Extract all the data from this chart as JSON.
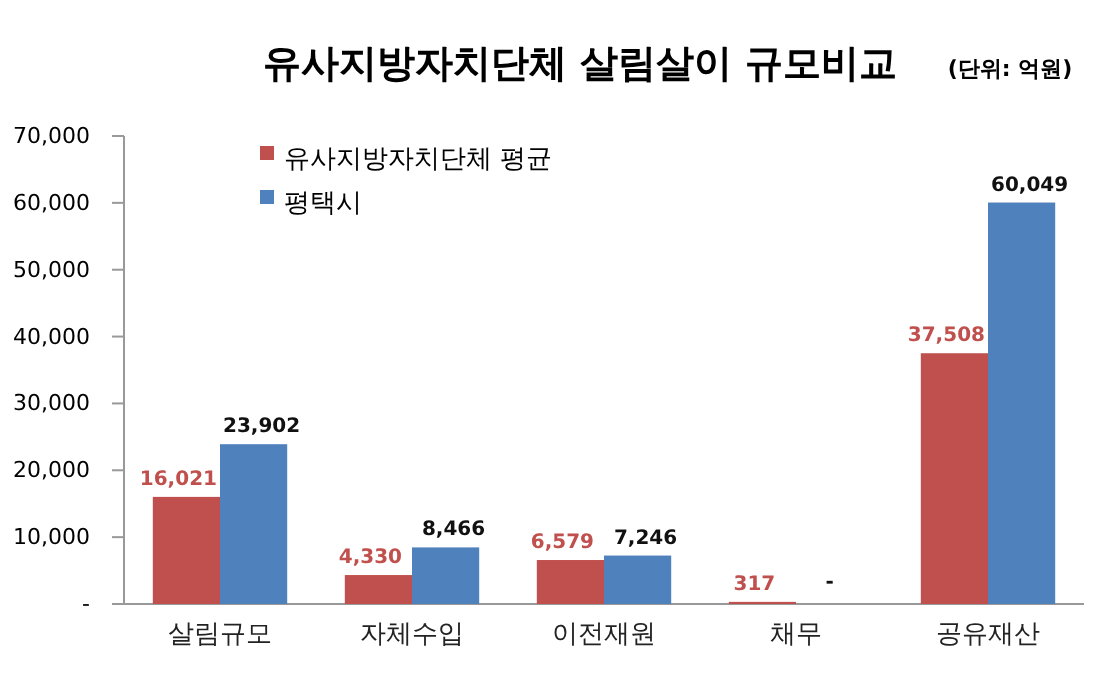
{
  "chart_data": {
    "type": "bar",
    "title": "유사지방자치단체 살림살이 규모비교",
    "subtitle": "(단위: 억원)",
    "categories": [
      "살림규모",
      "자체수입",
      "이전재원",
      "채무",
      "공유재산"
    ],
    "series": [
      {
        "name": "유사지방자치단체 평균",
        "color": "#c0504d",
        "values": [
          16021,
          4330,
          6579,
          317,
          37508
        ],
        "value_labels": [
          "16,021",
          "4,330",
          "6,579",
          "317",
          "37,508"
        ]
      },
      {
        "name": "평택시",
        "color": "#4f81bd",
        "values": [
          23902,
          8466,
          7246,
          null,
          60049
        ],
        "value_labels": [
          "23,902",
          "8,466",
          "7,246",
          null,
          "60,049"
        ]
      }
    ],
    "annotations": [
      {
        "text": "-",
        "x": "채무",
        "y": 0
      }
    ],
    "ylim": [
      0,
      70000
    ],
    "yticks": [
      {
        "value": 0,
        "label": "-"
      },
      {
        "value": 10000,
        "label": "10,000"
      },
      {
        "value": 20000,
        "label": "20,000"
      },
      {
        "value": 30000,
        "label": "30,000"
      },
      {
        "value": 40000,
        "label": "40,000"
      },
      {
        "value": 50000,
        "label": "50,000"
      },
      {
        "value": 60000,
        "label": "60,000"
      },
      {
        "value": 70000,
        "label": "70,000"
      }
    ],
    "legend": "top left",
    "grid": false
  }
}
